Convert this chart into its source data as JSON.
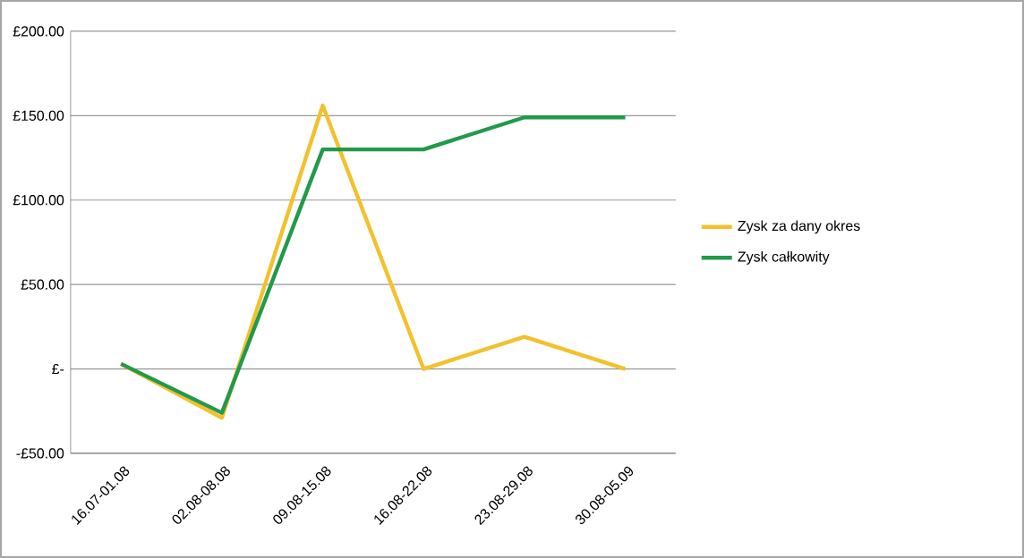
{
  "chart_data": {
    "type": "line",
    "categories": [
      "16.07-01.08",
      "02.08-08.08",
      "09.08-15.08",
      "16.08-22.08",
      "23.08-29.08",
      "30.08-05.09"
    ],
    "series": [
      {
        "name": "Zysk za dany okres",
        "color": "#f2c12e",
        "values": [
          3,
          -29,
          156,
          0,
          19,
          0
        ]
      },
      {
        "name": "Zysk całkowity",
        "color": "#23994b",
        "values": [
          3,
          -26,
          130,
          130,
          149,
          149
        ]
      }
    ],
    "ylim": [
      -50,
      200
    ],
    "yticks": [
      {
        "value": -50,
        "label": "-£50.00"
      },
      {
        "value": 0,
        "label": "£-"
      },
      {
        "value": 50,
        "label": "£50.00"
      },
      {
        "value": 100,
        "label": "£100.00"
      },
      {
        "value": 150,
        "label": "£150.00"
      },
      {
        "value": 200,
        "label": "£200.00"
      }
    ],
    "grid": "y",
    "legend": "right",
    "marker": "none",
    "line_style": "solid"
  }
}
